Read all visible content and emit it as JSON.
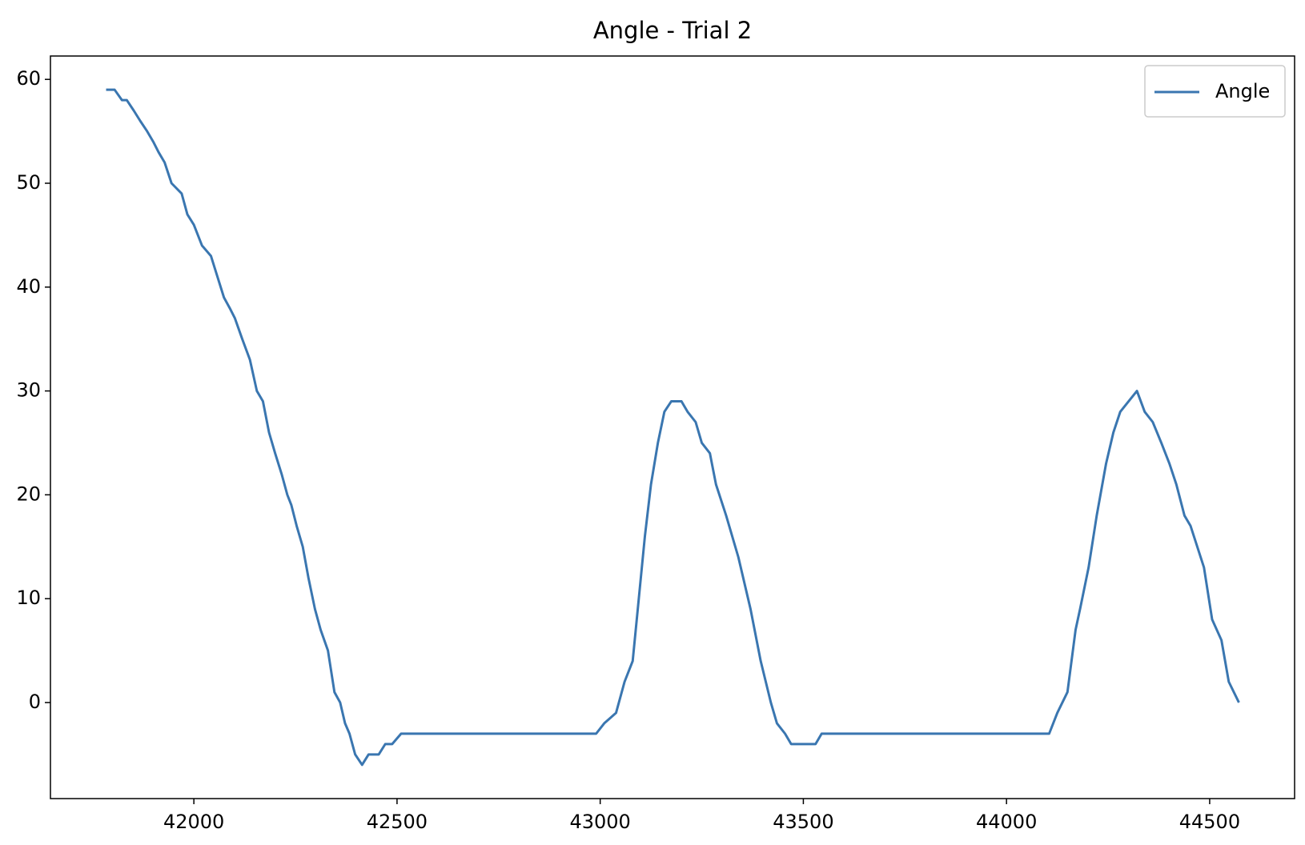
{
  "chart_data": {
    "type": "line",
    "title": "Angle - Trial 2",
    "x": [
      41784,
      41805,
      41823,
      41835,
      41852,
      41868,
      41885,
      41900,
      41913,
      41928,
      41945,
      41970,
      41984,
      42000,
      42020,
      42042,
      42058,
      42074,
      42088,
      42101,
      42119,
      42138,
      42155,
      42170,
      42185,
      42200,
      42216,
      42230,
      42240,
      42253,
      42268,
      42282,
      42298,
      42312,
      42330,
      42346,
      42360,
      42372,
      42383,
      42397,
      42414,
      42430,
      42455,
      42471,
      42488,
      42510,
      42990,
      43010,
      43039,
      43060,
      43080,
      43095,
      43110,
      43125,
      43142,
      43158,
      43175,
      43200,
      43215,
      43235,
      43250,
      43270,
      43285,
      43310,
      43340,
      43370,
      43395,
      43420,
      43435,
      43455,
      43470,
      43530,
      43545,
      44105,
      44125,
      44150,
      44170,
      44181,
      44202,
      44222,
      44245,
      44263,
      44280,
      44321,
      44340,
      44360,
      44381,
      44401,
      44418,
      44438,
      44453,
      44486,
      44506,
      44529,
      44547,
      44572
    ],
    "series": [
      {
        "name": "Angle",
        "color": "#3a76b0",
        "values": [
          59,
          59,
          58,
          58,
          57,
          56,
          55,
          54,
          53,
          52,
          50,
          49,
          47,
          46,
          44,
          43,
          41,
          39,
          38,
          37,
          35,
          33,
          30,
          29,
          26,
          24,
          22,
          20,
          19,
          17,
          15,
          12,
          9,
          7,
          5,
          1,
          0,
          -2,
          -3,
          -5,
          -6,
          -5,
          -5,
          -4,
          -4,
          -3,
          -3,
          -2,
          -1,
          2,
          4,
          10,
          16,
          21,
          25,
          28,
          29,
          29,
          28,
          27,
          25,
          24,
          21,
          18,
          14,
          9,
          4,
          0,
          -2,
          -3,
          -4,
          -4,
          -3,
          -3,
          -1,
          1,
          7,
          9,
          13,
          18,
          23,
          26,
          28,
          30,
          28,
          27,
          25,
          23,
          21,
          18,
          17,
          13,
          8,
          6,
          2,
          0
        ]
      }
    ],
    "xlim": [
      41647,
      44709
    ],
    "xticks": [
      42000,
      42500,
      43000,
      43500,
      44000,
      44500
    ],
    "ylim": [
      -9.25,
      62.25
    ],
    "yticks": [
      0,
      10,
      20,
      30,
      40,
      50,
      60
    ],
    "legend": "upper right"
  }
}
